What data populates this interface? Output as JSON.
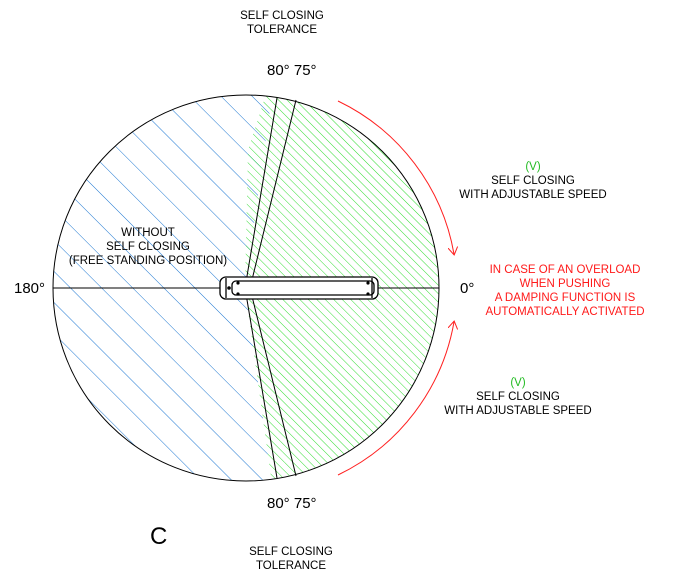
{
  "labels": {
    "top_tolerance": [
      "SELF CLOSING",
      "TOLERANCE"
    ],
    "bottom_tolerance": [
      "SELF CLOSING",
      "TOLERANCE"
    ],
    "top_angles": "80° 75°",
    "bottom_angles": "80° 75°",
    "deg_180": "180°",
    "deg_0": "0°",
    "without": [
      "WITHOUT",
      "SELF CLOSING",
      "(FREE  STANDING POSITION)"
    ],
    "upper_speed": {
      "tag": "(V)",
      "lines": [
        "SELF CLOSING",
        "WITH ADJUSTABLE SPEED"
      ]
    },
    "lower_speed": {
      "tag": "(V)",
      "lines": [
        "SELF CLOSING",
        "WITH ADJUSTABLE SPEED"
      ]
    },
    "overload": [
      "IN CASE OF AN OVERLOAD",
      "WHEN  PUSHING",
      "A DAMPING FUNCTION IS",
      "AUTOMATICALLY ACTIVATED"
    ],
    "variant": "C"
  },
  "colors": {
    "blue_hatch": "#1e78d2",
    "green_hatch": "#33dd33",
    "arrow": "#ff2020",
    "warning_text": "#ff1a1a",
    "tag_text": "#22bb22",
    "outline": "#000000"
  }
}
